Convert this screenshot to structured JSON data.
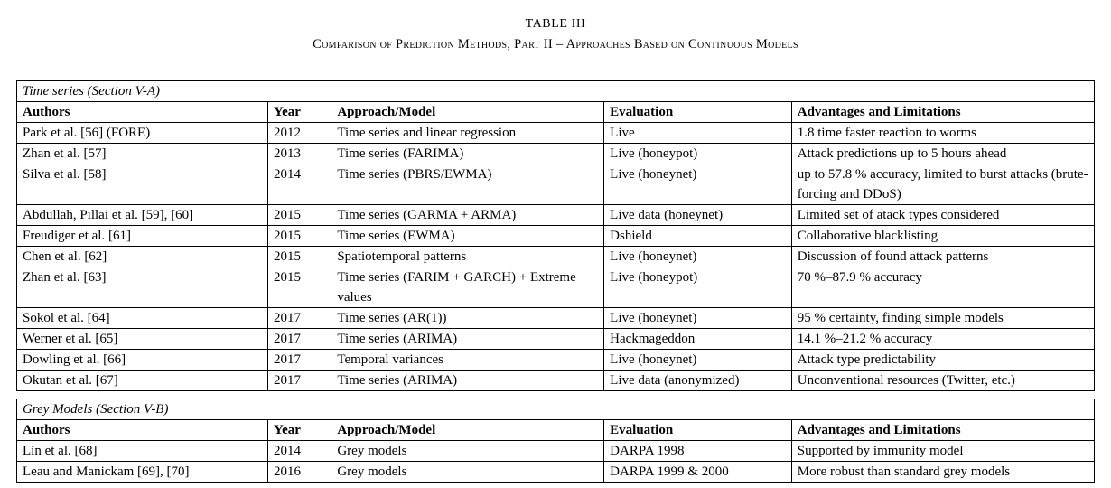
{
  "title": "TABLE III",
  "subtitle": "Comparison of Prediction Methods, Part II – Approaches Based on Continuous Models",
  "columns": [
    {
      "key": "authors",
      "label": "Authors"
    },
    {
      "key": "year",
      "label": "Year"
    },
    {
      "key": "approach",
      "label": "Approach/Model"
    },
    {
      "key": "evaluation",
      "label": "Evaluation"
    },
    {
      "key": "advantages",
      "label": "Advantages and Limitations"
    }
  ],
  "sections": [
    {
      "heading": "Time series (Section V-A)",
      "rows": [
        {
          "authors": "Park et al. [56] (FORE)",
          "year": "2012",
          "approach": "Time series and linear regression",
          "evaluation": "Live",
          "advantages": "1.8 time faster reaction to worms"
        },
        {
          "authors": "Zhan et al. [57]",
          "year": "2013",
          "approach": "Time series (FARIMA)",
          "evaluation": "Live (honeypot)",
          "advantages": "Attack predictions up to 5 hours ahead"
        },
        {
          "authors": "Silva et al. [58]",
          "year": "2014",
          "approach": "Time series (PBRS/EWMA)",
          "evaluation": "Live (honeynet)",
          "advantages": "up to 57.8 % accuracy, limited to burst attacks (brute-forcing and DDoS)"
        },
        {
          "authors": "Abdullah, Pillai et al. [59], [60]",
          "year": "2015",
          "approach": "Time series (GARMA + ARMA)",
          "evaluation": "Live data (honeynet)",
          "advantages": "Limited set of atack types considered"
        },
        {
          "authors": "Freudiger et al. [61]",
          "year": "2015",
          "approach": "Time series (EWMA)",
          "evaluation": "Dshield",
          "advantages": "Collaborative blacklisting"
        },
        {
          "authors": "Chen et al. [62]",
          "year": "2015",
          "approach": "Spatiotemporal patterns",
          "evaluation": "Live (honeynet)",
          "advantages": "Discussion of found attack patterns"
        },
        {
          "authors": "Zhan et al. [63]",
          "year": "2015",
          "approach": "Time series (FARIM + GARCH) + Extreme values",
          "evaluation": "Live (honeypot)",
          "advantages": "70 %–87.9 % accuracy"
        },
        {
          "authors": "Sokol et al. [64]",
          "year": "2017",
          "approach": "Time series (AR(1))",
          "evaluation": "Live (honeynet)",
          "advantages": "95 % certainty, finding simple models"
        },
        {
          "authors": "Werner et al. [65]",
          "year": "2017",
          "approach": "Time series (ARIMA)",
          "evaluation": "Hackmageddon",
          "advantages": "14.1 %–21.2 % accuracy"
        },
        {
          "authors": "Dowling et al. [66]",
          "year": "2017",
          "approach": "Temporal variances",
          "evaluation": "Live (honeynet)",
          "advantages": "Attack type predictability"
        },
        {
          "authors": "Okutan et al. [67]",
          "year": "2017",
          "approach": "Time series (ARIMA)",
          "evaluation": "Live data (anonymized)",
          "advantages": "Unconventional resources (Twitter, etc.)"
        }
      ]
    },
    {
      "heading": "Grey Models (Section V-B)",
      "rows": [
        {
          "authors": "Lin et al. [68]",
          "year": "2014",
          "approach": "Grey models",
          "evaluation": "DARPA 1998",
          "advantages": "Supported by immunity model"
        },
        {
          "authors": "Leau and Manickam [69], [70]",
          "year": "2016",
          "approach": "Grey models",
          "evaluation": "DARPA 1999 & 2000",
          "advantages": "More robust than standard grey models"
        }
      ]
    }
  ]
}
